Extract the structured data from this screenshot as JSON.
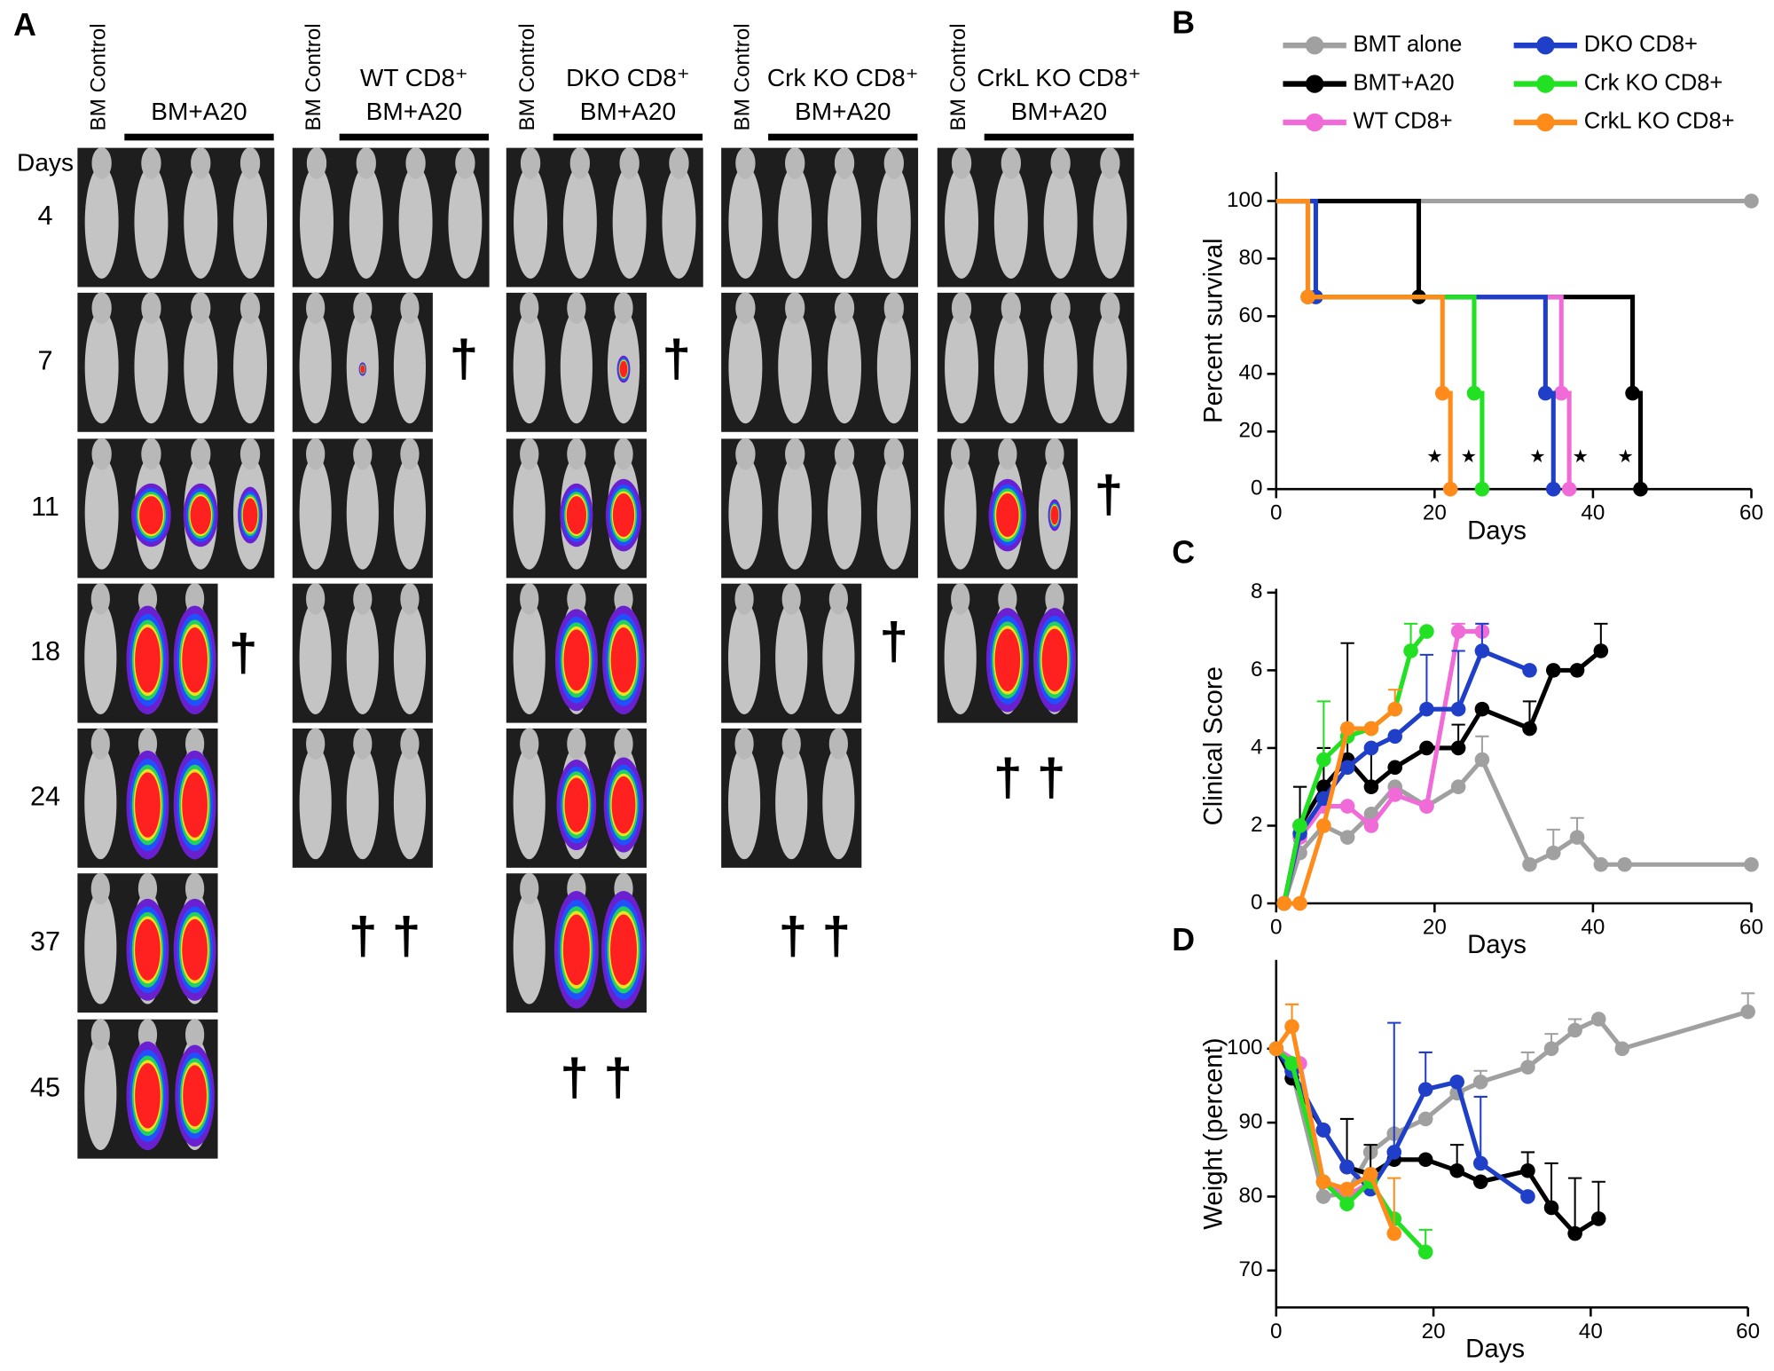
{
  "panel_a": {
    "label": "A",
    "days_label": "Days",
    "days": [
      "4",
      "7",
      "11",
      "18",
      "24",
      "37",
      "45"
    ],
    "groups": [
      {
        "control": "BM Control",
        "title": [
          "BM+A20"
        ],
        "deaths": [
          "†"
        ]
      },
      {
        "control": "BM Control",
        "title": [
          "WT CD8⁺",
          "BM+A20"
        ],
        "deaths": [
          "†",
          "† †"
        ]
      },
      {
        "control": "BM Control",
        "title": [
          "DKO CD8⁺",
          "BM+A20"
        ],
        "deaths": [
          "†",
          "† †"
        ]
      },
      {
        "control": "BM Control",
        "title": [
          "Crk KO CD8⁺",
          "BM+A20"
        ],
        "deaths": [
          "†",
          "† †"
        ]
      },
      {
        "control": "BM Control",
        "title": [
          "CrkL KO CD8⁺",
          "BM+A20"
        ],
        "deaths": [
          "†",
          "† †"
        ]
      }
    ]
  },
  "chart_data": [
    {
      "type": "step",
      "panel": "B",
      "ylabel": "Percent survival",
      "xlabel": "Days",
      "legend": "top",
      "xlim": [
        0,
        60
      ],
      "xticks": [
        0,
        20,
        40,
        60
      ],
      "ylim": [
        0,
        110
      ],
      "yticks": [
        0,
        20,
        40,
        60,
        80,
        100
      ],
      "series": [
        {
          "name": "BMT alone",
          "color": "#a0a0a0",
          "x": [
            0,
            60
          ],
          "values": [
            100,
            100
          ]
        },
        {
          "name": "BMT+A20",
          "color": "#000000",
          "x": [
            0,
            18,
            45,
            46
          ],
          "values": [
            100,
            66.7,
            33.3,
            0
          ]
        },
        {
          "name": "WT CD8+",
          "color": "#f06ad8",
          "x": [
            0,
            4,
            36,
            37
          ],
          "values": [
            100,
            66.7,
            33.3,
            0
          ]
        },
        {
          "name": "DKO CD8+",
          "color": "#1f3fc8",
          "x": [
            0,
            5,
            34,
            35
          ],
          "values": [
            100,
            66.7,
            33.3,
            0
          ]
        },
        {
          "name": "Crk KO CD8+",
          "color": "#22e022",
          "x": [
            0,
            4,
            25,
            26
          ],
          "values": [
            100,
            66.7,
            33.3,
            0
          ]
        },
        {
          "name": "CrkL KO CD8+",
          "color": "#ff8c1a",
          "x": [
            0,
            4,
            21,
            22
          ],
          "values": [
            100,
            66.7,
            33.3,
            0
          ]
        }
      ],
      "annotations": [
        {
          "text": "★",
          "x": 20,
          "y": 11
        },
        {
          "text": "★",
          "x": 24.3,
          "y": 11
        },
        {
          "text": "★",
          "x": 33,
          "y": 11
        },
        {
          "text": "★",
          "x": 38.4,
          "y": 11
        },
        {
          "text": "★",
          "x": 44.1,
          "y": 11
        }
      ]
    },
    {
      "type": "line",
      "panel": "C",
      "ylabel": "Clinical Score",
      "xlabel": "Days",
      "xlim": [
        0,
        60
      ],
      "xticks": [
        0,
        20,
        40,
        60
      ],
      "ylim": [
        0,
        8.1
      ],
      "yticks": [
        0,
        2,
        4,
        6,
        8
      ],
      "series": [
        {
          "color": "#a0a0a0",
          "x": [
            1,
            3,
            6,
            9,
            12,
            15,
            19,
            23,
            26,
            32,
            35,
            38,
            41,
            44,
            60
          ],
          "values": [
            0,
            1.3,
            2,
            1.7,
            2.3,
            3,
            2.5,
            3,
            3.7,
            1,
            1.3,
            1.7,
            1,
            1,
            1
          ],
          "errors": [
            null,
            0.3,
            null,
            null,
            null,
            null,
            null,
            null,
            0.6,
            null,
            0.6,
            0.5,
            null,
            null,
            null
          ]
        },
        {
          "color": "#000000",
          "x": [
            1,
            3,
            6,
            9,
            12,
            15,
            19,
            23,
            26,
            32,
            35,
            38,
            41
          ],
          "values": [
            0,
            2,
            3,
            3.7,
            3,
            3.5,
            4,
            4,
            5,
            4.5,
            6,
            6,
            6.5
          ],
          "errors": [
            null,
            1,
            1,
            3,
            1,
            null,
            null,
            0.6,
            null,
            0.7,
            null,
            null,
            0.7
          ]
        },
        {
          "color": "#f06ad8",
          "x": [
            1,
            3,
            6,
            9,
            12,
            15,
            19,
            23,
            26
          ],
          "values": [
            0,
            1.7,
            2.5,
            2.5,
            2,
            2.8,
            2.5,
            7,
            7
          ],
          "errors": [
            null,
            null,
            null,
            null,
            null,
            null,
            null,
            0.2,
            0.2
          ]
        },
        {
          "color": "#1f3fc8",
          "x": [
            1,
            3,
            6,
            9,
            12,
            15,
            19,
            23,
            26,
            32
          ],
          "values": [
            0,
            1.8,
            2.7,
            3.5,
            4,
            4.3,
            5,
            5,
            6.5,
            6
          ],
          "errors": [
            null,
            null,
            null,
            null,
            null,
            null,
            1.4,
            1.5,
            0.7,
            null
          ]
        },
        {
          "color": "#22e022",
          "x": [
            1,
            3,
            6,
            9,
            12,
            15,
            17,
            19
          ],
          "values": [
            0,
            2,
            3.7,
            4.3,
            4.5,
            5,
            6.5,
            7
          ],
          "errors": [
            null,
            null,
            1.5,
            null,
            null,
            null,
            0.7,
            null
          ]
        },
        {
          "color": "#ff8c1a",
          "x": [
            1,
            3,
            6,
            9,
            12,
            15
          ],
          "values": [
            0,
            0,
            2,
            4.5,
            4.5,
            5
          ],
          "errors": [
            null,
            null,
            null,
            null,
            null,
            0.5
          ]
        }
      ]
    },
    {
      "type": "line",
      "panel": "D",
      "ylabel": "Weight (percent)",
      "xlabel": "Days",
      "xlim": [
        0,
        60
      ],
      "xticks": [
        0,
        20,
        40,
        60
      ],
      "ylim": [
        65,
        112
      ],
      "yticks": [
        70,
        80,
        90,
        100
      ],
      "series": [
        {
          "color": "#a0a0a0",
          "x": [
            0,
            2,
            6,
            9,
            12,
            15,
            19,
            23,
            26,
            32,
            35,
            38,
            41,
            44,
            60
          ],
          "values": [
            100,
            97,
            80,
            80.5,
            86,
            88.5,
            90.5,
            94,
            95.5,
            97.5,
            100,
            102.5,
            104,
            100,
            105
          ],
          "errors": [
            null,
            null,
            null,
            null,
            null,
            null,
            null,
            null,
            1.5,
            2,
            2,
            1.5,
            null,
            null,
            2.5
          ]
        },
        {
          "color": "#000000",
          "x": [
            0,
            2,
            6,
            9,
            12,
            15,
            19,
            23,
            26,
            32,
            35,
            38,
            41
          ],
          "values": [
            100,
            96,
            89,
            84,
            83,
            85,
            85,
            83.5,
            82,
            83.5,
            78.5,
            75,
            77
          ],
          "errors": [
            null,
            null,
            null,
            6.5,
            4,
            null,
            null,
            3.5,
            null,
            2.5,
            6,
            7.5,
            5
          ]
        },
        {
          "color": "#f06ad8",
          "x": [
            0,
            3,
            6,
            9,
            12
          ],
          "values": [
            100,
            98,
            82,
            80,
            82
          ],
          "errors": [
            null,
            null,
            null,
            null,
            null
          ]
        },
        {
          "color": "#1f3fc8",
          "x": [
            0,
            2,
            6,
            9,
            12,
            15,
            19,
            23,
            26,
            32
          ],
          "values": [
            100,
            97,
            89,
            84,
            81,
            86,
            94.5,
            95.5,
            84.5,
            80
          ],
          "errors": [
            null,
            null,
            null,
            null,
            null,
            17.5,
            5,
            null,
            9,
            null
          ]
        },
        {
          "color": "#22e022",
          "x": [
            0,
            2,
            6,
            9,
            12,
            15,
            19
          ],
          "values": [
            100,
            98,
            82,
            79,
            82,
            77,
            72.5
          ],
          "errors": [
            null,
            null,
            null,
            null,
            null,
            null,
            3
          ]
        },
        {
          "color": "#ff8c1a",
          "x": [
            0,
            2,
            6,
            9,
            12,
            15
          ],
          "values": [
            100,
            103,
            82,
            81,
            83,
            75
          ],
          "errors": [
            null,
            3,
            null,
            null,
            null,
            7.5
          ]
        }
      ]
    }
  ]
}
